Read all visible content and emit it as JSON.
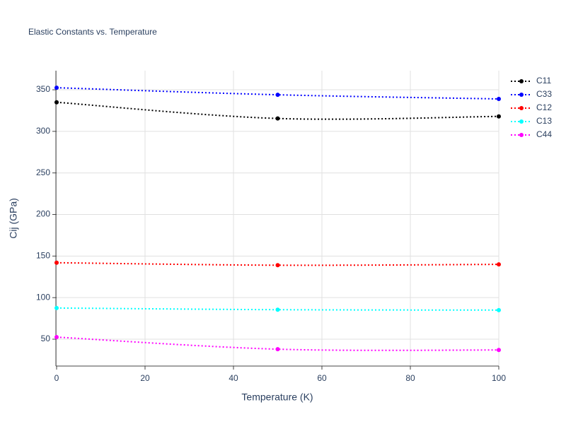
{
  "chart_data": {
    "type": "line",
    "title": "Elastic Constants vs. Temperature",
    "x_label": "Temperature (K)",
    "y_label": "Cij (GPa)",
    "x": [
      0,
      50,
      100
    ],
    "series": [
      {
        "name": "C11",
        "color": "#000000",
        "values": [
          335,
          315.5,
          318
        ]
      },
      {
        "name": "C33",
        "color": "#0000ff",
        "values": [
          352.5,
          344,
          339
        ]
      },
      {
        "name": "C12",
        "color": "#ff0000",
        "values": [
          142,
          139,
          140
        ]
      },
      {
        "name": "C13",
        "color": "#00ffff",
        "values": [
          87.5,
          85.5,
          85
        ]
      },
      {
        "name": "C44",
        "color": "#ff00ff",
        "values": [
          52.5,
          38,
          37
        ]
      }
    ],
    "xlim": [
      0,
      100
    ],
    "xticks": [
      0,
      20,
      40,
      60,
      80,
      100
    ],
    "ylim": [
      17.7,
      373
    ],
    "yticks": [
      50,
      100,
      150,
      200,
      250,
      300,
      350
    ],
    "grid": true,
    "legend": "top-right"
  }
}
